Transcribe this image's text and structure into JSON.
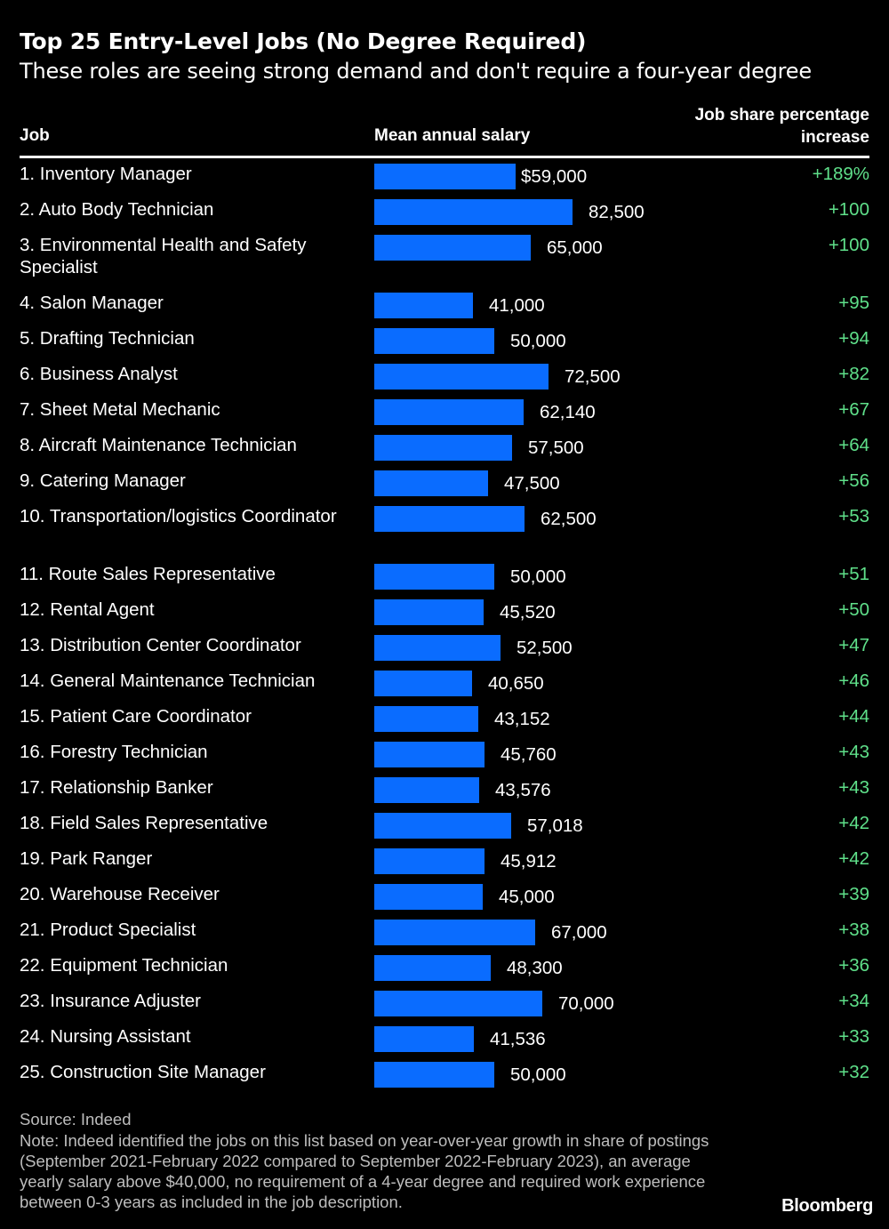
{
  "chart_data": {
    "type": "bar",
    "orientation": "horizontal",
    "title": "Top 25 Entry-Level Jobs (No Degree Required)",
    "subtitle": "These roles are seeing strong demand and don't require a four-year degree",
    "columns": {
      "job": "Job",
      "salary": "Mean annual salary",
      "change_line1": "Job share percentage",
      "change_line2": "increase"
    },
    "rows": [
      {
        "job": "1. Inventory Manager",
        "salary": 59000,
        "salary_label": "$59,000",
        "change": "+189%"
      },
      {
        "job": "2. Auto Body Technician",
        "salary": 82500,
        "salary_label": "82,500",
        "change": "+100"
      },
      {
        "job": "3. Environmental Health and Safety Specialist",
        "salary": 65000,
        "salary_label": "65,000",
        "change": "+100"
      },
      {
        "job": "4. Salon Manager",
        "salary": 41000,
        "salary_label": "41,000",
        "change": "+95"
      },
      {
        "job": "5. Drafting Technician",
        "salary": 50000,
        "salary_label": "50,000",
        "change": "+94"
      },
      {
        "job": "6. Business Analyst",
        "salary": 72500,
        "salary_label": "72,500",
        "change": "+82"
      },
      {
        "job": "7. Sheet Metal Mechanic",
        "salary": 62140,
        "salary_label": "62,140",
        "change": "+67"
      },
      {
        "job": "8. Aircraft Maintenance Technician",
        "salary": 57500,
        "salary_label": "57,500",
        "change": "+64"
      },
      {
        "job": "9. Catering Manager",
        "salary": 47500,
        "salary_label": "47,500",
        "change": "+56"
      },
      {
        "job": "10. Transportation/logistics Coordinator",
        "salary": 62500,
        "salary_label": "62,500",
        "change": "+53"
      },
      {
        "job": "11. Route Sales Representative",
        "salary": 50000,
        "salary_label": "50,000",
        "change": "+51"
      },
      {
        "job": "12. Rental Agent",
        "salary": 45520,
        "salary_label": "45,520",
        "change": "+50"
      },
      {
        "job": "13. Distribution Center Coordinator",
        "salary": 52500,
        "salary_label": "52,500",
        "change": "+47"
      },
      {
        "job": "14. General Maintenance Technician",
        "salary": 40650,
        "salary_label": "40,650",
        "change": "+46"
      },
      {
        "job": "15. Patient Care Coordinator",
        "salary": 43152,
        "salary_label": "43,152",
        "change": "+44"
      },
      {
        "job": "16. Forestry Technician",
        "salary": 45760,
        "salary_label": "45,760",
        "change": "+43"
      },
      {
        "job": "17. Relationship Banker",
        "salary": 43576,
        "salary_label": "43,576",
        "change": "+43"
      },
      {
        "job": "18. Field Sales Representative",
        "salary": 57018,
        "salary_label": "57,018",
        "change": "+42"
      },
      {
        "job": "19. Park Ranger",
        "salary": 45912,
        "salary_label": "45,912",
        "change": "+42"
      },
      {
        "job": "20. Warehouse Receiver",
        "salary": 45000,
        "salary_label": "45,000",
        "change": "+39"
      },
      {
        "job": "21. Product Specialist",
        "salary": 67000,
        "salary_label": "67,000",
        "change": "+38"
      },
      {
        "job": "22. Equipment Technician",
        "salary": 48300,
        "salary_label": "48,300",
        "change": "+36"
      },
      {
        "job": "23. Insurance Adjuster",
        "salary": 70000,
        "salary_label": "70,000",
        "change": "+34"
      },
      {
        "job": "24. Nursing Assistant",
        "salary": 41536,
        "salary_label": "41,536",
        "change": "+33"
      },
      {
        "job": "25. Construction Site Manager",
        "salary": 50000,
        "salary_label": "50,000",
        "change": "+32"
      }
    ],
    "bar_color": "#0a6cff",
    "change_color": "#5fe08a",
    "xlim": [
      0,
      82500
    ]
  },
  "footer": {
    "source": "Source: Indeed",
    "note": "Note: Indeed identified the jobs on this list based on year-over-year growth in share of postings (September 2021-February 2022 compared to September 2022-February 2023), an average yearly salary above $40,000, no requirement of a 4-year degree and required work experience between 0-3 years as included in the job description.",
    "brand": "Bloomberg"
  }
}
